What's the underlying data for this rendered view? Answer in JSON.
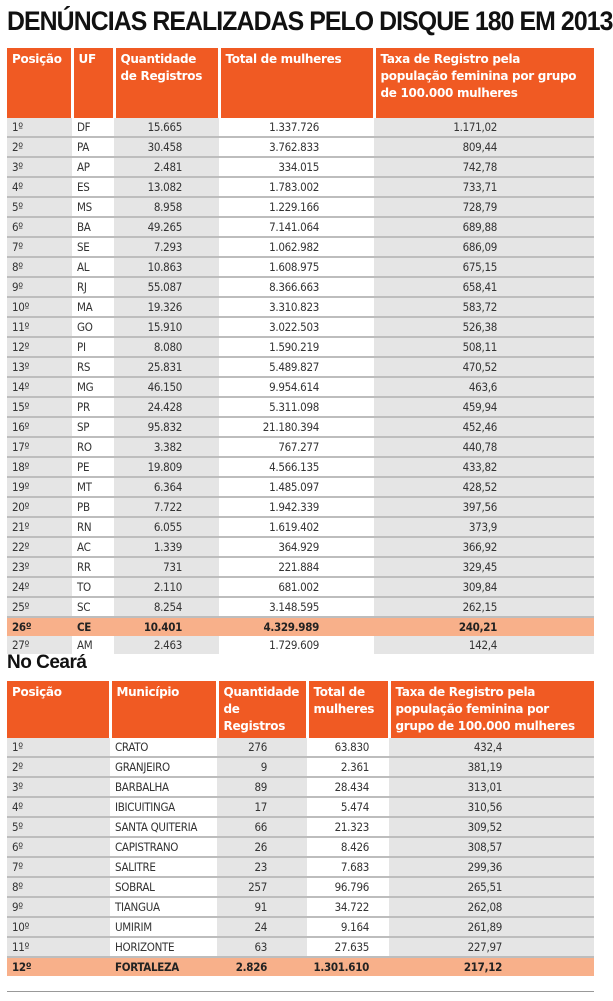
{
  "title": "DENÚNCIAS REALIZADAS PELO DISQUE 180 EM 2013",
  "colors": {
    "header": "#f05a23",
    "highlight": "#f8b08a",
    "shade": "#e5e5e5"
  },
  "table1": {
    "headers": [
      "Posição",
      "UF",
      "Quantidade de Registros",
      "Total de mulheres",
      "Taxa de Registro pela população feminina por grupo de 100.000 mulheres"
    ],
    "highlight_index": 25,
    "rows": [
      [
        "1º",
        "DF",
        "15.665",
        "1.337.726",
        "1.171,02"
      ],
      [
        "2º",
        "PA",
        "30.458",
        "3.762.833",
        "809,44"
      ],
      [
        "3º",
        "AP",
        "2.481",
        "334.015",
        "742,78"
      ],
      [
        "4º",
        "ES",
        "13.082",
        "1.783.002",
        "733,71"
      ],
      [
        "5º",
        "MS",
        "8.958",
        "1.229.166",
        "728,79"
      ],
      [
        "6º",
        "BA",
        "49.265",
        "7.141.064",
        "689,88"
      ],
      [
        "7º",
        "SE",
        "7.293",
        "1.062.982",
        "686,09"
      ],
      [
        "8º",
        "AL",
        "10.863",
        "1.608.975",
        "675,15"
      ],
      [
        "9º",
        "RJ",
        "55.087",
        "8.366.663",
        "658,41"
      ],
      [
        "10º",
        "MA",
        "19.326",
        "3.310.823",
        "583,72"
      ],
      [
        "11º",
        "GO",
        "15.910",
        "3.022.503",
        "526,38"
      ],
      [
        "12º",
        "PI",
        "8.080",
        "1.590.219",
        "508,11"
      ],
      [
        "13º",
        "RS",
        "25.831",
        "5.489.827",
        "470,52"
      ],
      [
        "14º",
        "MG",
        "46.150",
        "9.954.614",
        "463,6"
      ],
      [
        "15º",
        "PR",
        "24.428",
        "5.311.098",
        "459,94"
      ],
      [
        "16º",
        "SP",
        "95.832",
        "21.180.394",
        "452,46"
      ],
      [
        "17º",
        "RO",
        "3.382",
        "767.277",
        "440,78"
      ],
      [
        "18º",
        "PE",
        "19.809",
        "4.566.135",
        "433,82"
      ],
      [
        "19º",
        "MT",
        "6.364",
        "1.485.097",
        "428,52"
      ],
      [
        "20º",
        "PB",
        "7.722",
        "1.942.339",
        "397,56"
      ],
      [
        "21º",
        "RN",
        "6.055",
        "1.619.402",
        "373,9"
      ],
      [
        "22º",
        "AC",
        "1.339",
        "364.929",
        "366,92"
      ],
      [
        "23º",
        "RR",
        "731",
        "221.884",
        "329,45"
      ],
      [
        "24º",
        "TO",
        "2.110",
        "681.002",
        "309,84"
      ],
      [
        "25º",
        "SC",
        "8.254",
        "3.148.595",
        "262,15"
      ],
      [
        "26º",
        "CE",
        "10.401",
        "4.329.989",
        "240,21"
      ],
      [
        "27º",
        "AM",
        "2.463",
        "1.729.609",
        "142,4"
      ]
    ]
  },
  "subtitle": "No Ceará",
  "table2": {
    "headers": [
      "Posição",
      "Município",
      "Quantidade de Registros",
      "Total de mulheres",
      "Taxa de Registro pela população feminina por grupo de 100.000 mulheres"
    ],
    "highlight_index": 11,
    "rows": [
      [
        "1º",
        "CRATO",
        "276",
        "63.830",
        "432,4"
      ],
      [
        "2º",
        "GRANJEIRO",
        "9",
        "2.361",
        "381,19"
      ],
      [
        "3º",
        "BARBALHA",
        "89",
        "28.434",
        "313,01"
      ],
      [
        "4º",
        "IBICUITINGA",
        "17",
        "5.474",
        "310,56"
      ],
      [
        "5º",
        "SANTA QUITERIA",
        "66",
        "21.323",
        "309,52"
      ],
      [
        "6º",
        "CAPISTRANO",
        "26",
        "8.426",
        "308,57"
      ],
      [
        "7º",
        "SALITRE",
        "23",
        "7.683",
        "299,36"
      ],
      [
        "8º",
        "SOBRAL",
        "257",
        "96.796",
        "265,51"
      ],
      [
        "9º",
        "TIANGUA",
        "91",
        "34.722",
        "262,08"
      ],
      [
        "10º",
        "UMIRIM",
        "24",
        "9.164",
        "261,89"
      ],
      [
        "11º",
        "HORIZONTE",
        "63",
        "27.635",
        "227,97"
      ],
      [
        "12º",
        "FORTALEZA",
        "2.826",
        "1.301.610",
        "217,12"
      ]
    ]
  }
}
